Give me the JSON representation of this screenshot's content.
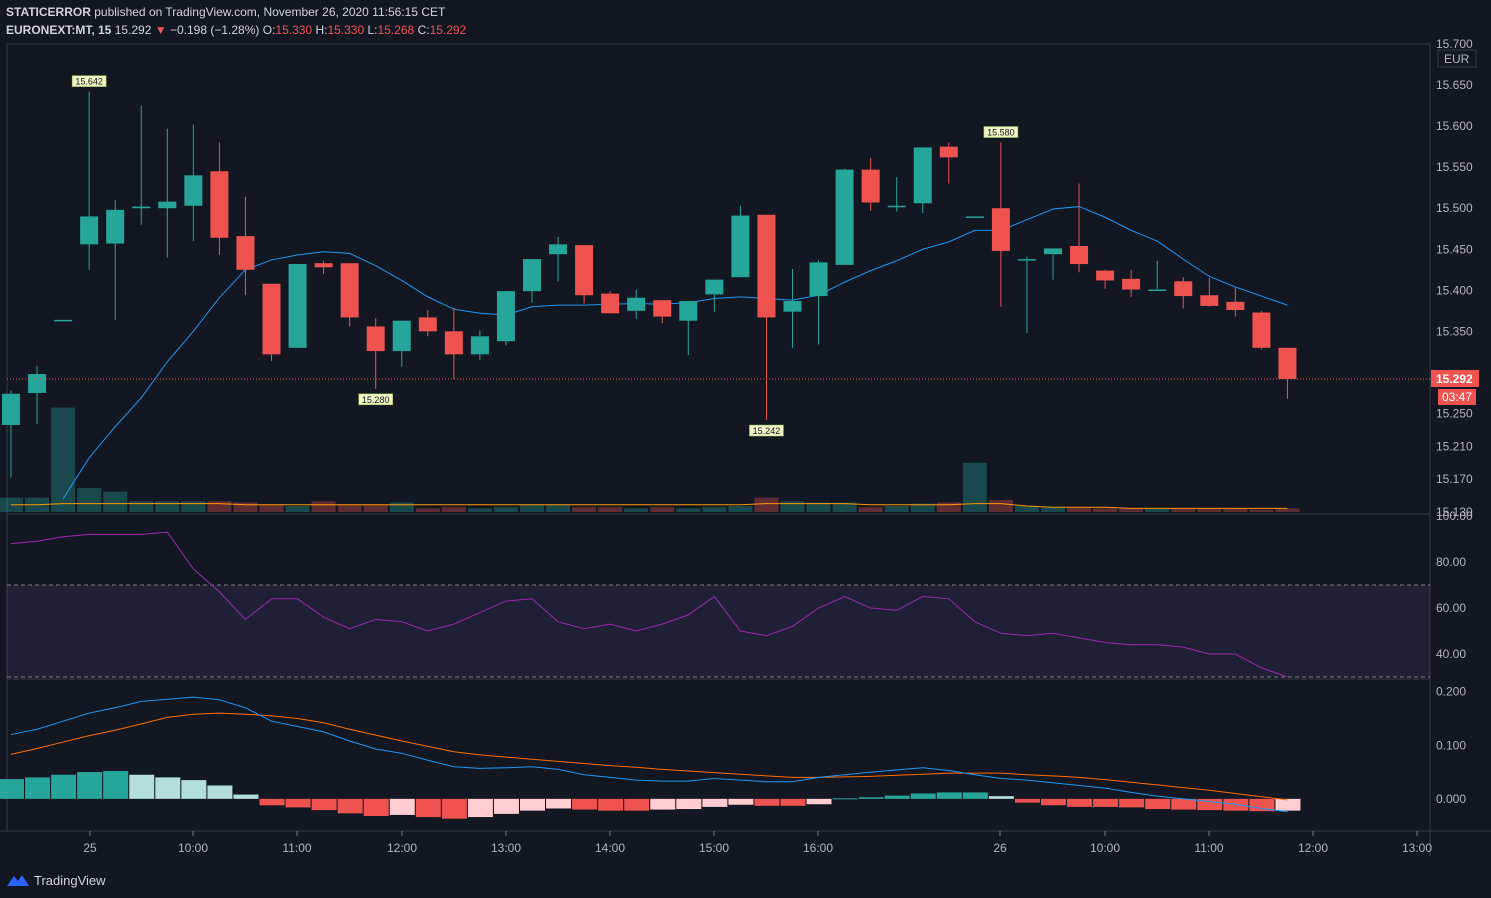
{
  "header": {
    "publisher": "STATICERROR",
    "published_text": "published on TradingView.com, November 26, 2020 11:56:15 CET",
    "symbol": "EURONEXT:MT, 15",
    "last": "15.292",
    "change_arrow": "▼",
    "change": "−0.198 (−1.28%)",
    "o_label": "O:",
    "o": "15.330",
    "h_label": "H:",
    "h": "15.330",
    "l_label": "L:",
    "l": "15.268",
    "c_label": "C:",
    "c": "15.292"
  },
  "footer": {
    "brand": "TradingView",
    "logo_icon": "tradingview-logo-icon"
  },
  "colors": {
    "background": "#131722",
    "up": "#26a69a",
    "down": "#ef5350",
    "ma": "#2196f3",
    "volume_ma": "#ff9800",
    "rsi": "#9c27b0",
    "macd": "#2196f3",
    "signal": "#ff6d00"
  },
  "chart_data": {
    "type": "candlestick",
    "currency": "EUR",
    "price_ticks": [
      "15.700",
      "15.650",
      "15.600",
      "15.550",
      "15.500",
      "15.450",
      "15.400",
      "15.350",
      "15.290",
      "15.250",
      "15.210",
      "15.170",
      "15.130"
    ],
    "price_ylim": [
      15.13,
      15.7
    ],
    "last_price": "15.292",
    "countdown": "03:47",
    "x_labels": [
      "25",
      "10:00",
      "11:00",
      "12:00",
      "13:00",
      "14:00",
      "15:00",
      "16:00",
      "26",
      "10:00",
      "11:00",
      "12:00",
      "13:00"
    ],
    "annotations": [
      {
        "label": "15.642",
        "bar": 3,
        "value": 15.642,
        "type": "high"
      },
      {
        "label": "15.280",
        "bar": 14,
        "value": 15.28,
        "type": "low"
      },
      {
        "label": "15.242",
        "bar": 29,
        "value": 15.242,
        "type": "low"
      },
      {
        "label": "15.580",
        "bar": 38,
        "value": 15.58,
        "type": "high"
      }
    ],
    "candles": [
      [
        15.236,
        15.274,
        15.172,
        15.278
      ],
      [
        15.275,
        15.298,
        15.237,
        15.308
      ],
      [
        15.364,
        15.364,
        15.364,
        15.364
      ],
      [
        15.456,
        15.49,
        15.425,
        15.642
      ],
      [
        15.457,
        15.498,
        15.364,
        15.51
      ],
      [
        15.5,
        15.502,
        15.48,
        15.625
      ],
      [
        15.5,
        15.508,
        15.44,
        15.597
      ],
      [
        15.503,
        15.54,
        15.46,
        15.602
      ],
      [
        15.545,
        15.464,
        15.443,
        15.58
      ],
      [
        15.466,
        15.425,
        15.394,
        15.514
      ],
      [
        15.408,
        15.322,
        15.314,
        15.408
      ],
      [
        15.33,
        15.432,
        15.33,
        15.432
      ],
      [
        15.433,
        15.428,
        15.42,
        15.436
      ],
      [
        15.433,
        15.367,
        15.356,
        15.433
      ],
      [
        15.356,
        15.326,
        15.28,
        15.366
      ],
      [
        15.326,
        15.363,
        15.307,
        15.363
      ],
      [
        15.367,
        15.35,
        15.344,
        15.376
      ],
      [
        15.35,
        15.322,
        15.292,
        15.379
      ],
      [
        15.322,
        15.344,
        15.315,
        15.351
      ],
      [
        15.338,
        15.399,
        15.333,
        15.399
      ],
      [
        15.399,
        15.438,
        15.385,
        15.438
      ],
      [
        15.444,
        15.456,
        15.411,
        15.465
      ],
      [
        15.455,
        15.394,
        15.384,
        15.455
      ],
      [
        15.396,
        15.372,
        15.372,
        15.399
      ],
      [
        15.375,
        15.391,
        15.365,
        15.401
      ],
      [
        15.388,
        15.368,
        15.36,
        15.388
      ],
      [
        15.363,
        15.387,
        15.321,
        15.387
      ],
      [
        15.395,
        15.413,
        15.374,
        15.413
      ],
      [
        15.416,
        15.491,
        15.416,
        15.503
      ],
      [
        15.492,
        15.367,
        15.242,
        15.492
      ],
      [
        15.374,
        15.387,
        15.33,
        15.426
      ],
      [
        15.393,
        15.434,
        15.334,
        15.437
      ],
      [
        15.431,
        15.547,
        15.431,
        15.548
      ],
      [
        15.547,
        15.507,
        15.497,
        15.561
      ],
      [
        15.503,
        15.503,
        15.496,
        15.538
      ],
      [
        15.506,
        15.574,
        15.494,
        15.574
      ],
      [
        15.575,
        15.562,
        15.53,
        15.58
      ],
      [
        15.49,
        15.49,
        15.49,
        15.49
      ],
      [
        15.5,
        15.448,
        15.38,
        15.58
      ],
      [
        15.438,
        15.438,
        15.348,
        15.441
      ],
      [
        15.444,
        15.451,
        15.413,
        15.451
      ],
      [
        15.454,
        15.432,
        15.422,
        15.53
      ],
      [
        15.424,
        15.412,
        15.402,
        15.425
      ],
      [
        15.414,
        15.401,
        15.392,
        15.425
      ],
      [
        15.401,
        15.401,
        15.402,
        15.436
      ],
      [
        15.411,
        15.393,
        15.378,
        15.416
      ],
      [
        15.394,
        15.381,
        15.38,
        15.415
      ],
      [
        15.386,
        15.376,
        15.368,
        15.403
      ],
      [
        15.373,
        15.33,
        15.328,
        15.375
      ],
      [
        15.33,
        15.292,
        15.268,
        15.33
      ]
    ],
    "ma": [
      null,
      null,
      15.146,
      15.196,
      15.234,
      15.269,
      15.313,
      15.35,
      15.391,
      15.425,
      15.437,
      15.443,
      15.447,
      15.445,
      15.43,
      15.412,
      15.392,
      15.377,
      15.372,
      15.37,
      15.38,
      15.382,
      15.382,
      15.383,
      15.384,
      15.383,
      15.385,
      15.39,
      15.392,
      15.39,
      15.388,
      15.394,
      15.41,
      15.424,
      15.436,
      15.45,
      15.459,
      15.473,
      15.473,
      15.486,
      15.499,
      15.502,
      15.489,
      15.473,
      15.46,
      15.438,
      15.417,
      15.404,
      15.393,
      15.382
    ],
    "volume_ylim": [
      0,
      100
    ],
    "volume": [
      12,
      12,
      87,
      20,
      17,
      9,
      9,
      9,
      9,
      8,
      6,
      5,
      9,
      6,
      6,
      8,
      3,
      4,
      3,
      4,
      6,
      6,
      4,
      4,
      3,
      4,
      3,
      4,
      5,
      12,
      9,
      8,
      8,
      4,
      5,
      7,
      8,
      41,
      10,
      5,
      4,
      4,
      3,
      3,
      3,
      3,
      3,
      3,
      2,
      3
    ],
    "volume_ma": [
      6,
      6,
      7,
      7,
      7,
      7,
      7,
      7,
      7,
      6,
      6,
      6,
      6,
      6,
      6,
      6,
      6,
      6,
      6,
      6,
      6,
      6,
      6,
      6,
      6,
      6,
      6,
      6,
      6,
      7,
      7,
      7,
      7,
      6,
      6,
      6,
      6,
      7,
      7,
      5,
      4,
      4,
      4,
      3,
      3,
      3,
      3,
      3,
      3,
      3
    ],
    "rsi_ticks": [
      "100.00",
      "80.00",
      "60.00",
      "40.00"
    ],
    "rsi_ylim": [
      30,
      100
    ],
    "rsi_bands": [
      70,
      30
    ],
    "rsi": [
      88,
      89,
      91,
      92,
      92,
      92,
      93,
      77,
      67,
      55,
      64,
      64,
      56,
      51,
      55,
      54,
      50,
      53,
      58,
      63,
      64,
      54,
      51,
      53,
      50,
      53,
      57,
      65,
      50,
      48,
      52,
      60,
      65,
      60,
      59,
      65,
      64,
      54,
      49,
      48,
      49,
      47,
      45,
      44,
      44,
      43,
      40,
      40,
      34,
      30
    ],
    "macd_ticks": [
      "0.200",
      "0.100",
      "0.000"
    ],
    "macd_ylim": [
      -0.06,
      0.22
    ],
    "macd": [
      0.12,
      0.13,
      0.145,
      0.16,
      0.17,
      0.182,
      0.186,
      0.19,
      0.185,
      0.17,
      0.145,
      0.135,
      0.125,
      0.108,
      0.093,
      0.085,
      0.072,
      0.06,
      0.057,
      0.058,
      0.06,
      0.055,
      0.045,
      0.04,
      0.035,
      0.033,
      0.033,
      0.038,
      0.035,
      0.032,
      0.032,
      0.04,
      0.045,
      0.05,
      0.054,
      0.058,
      0.053,
      0.045,
      0.038,
      0.035,
      0.03,
      0.025,
      0.02,
      0.012,
      0.005,
      0.0,
      -0.005,
      -0.01,
      -0.018,
      -0.024
    ],
    "signal": [
      0.083,
      0.094,
      0.106,
      0.118,
      0.128,
      0.14,
      0.152,
      0.158,
      0.16,
      0.158,
      0.155,
      0.15,
      0.142,
      0.13,
      0.119,
      0.108,
      0.098,
      0.088,
      0.082,
      0.078,
      0.074,
      0.07,
      0.066,
      0.062,
      0.059,
      0.055,
      0.052,
      0.049,
      0.046,
      0.043,
      0.04,
      0.04,
      0.041,
      0.042,
      0.044,
      0.046,
      0.048,
      0.048,
      0.048,
      0.045,
      0.043,
      0.04,
      0.036,
      0.031,
      0.026,
      0.021,
      0.016,
      0.01,
      0.004,
      -0.002
    ],
    "histogram": [
      0.037,
      0.04,
      0.045,
      0.05,
      0.052,
      0.045,
      0.04,
      0.035,
      0.025,
      0.008,
      -0.012,
      -0.016,
      -0.021,
      -0.027,
      -0.032,
      -0.03,
      -0.034,
      -0.037,
      -0.034,
      -0.028,
      -0.022,
      -0.018,
      -0.02,
      -0.022,
      -0.022,
      -0.02,
      -0.019,
      -0.015,
      -0.011,
      -0.013,
      -0.013,
      -0.01,
      0.001,
      0.003,
      0.006,
      0.01,
      0.012,
      0.012,
      0.005,
      -0.007,
      -0.012,
      -0.015,
      -0.015,
      -0.016,
      -0.019,
      -0.02,
      -0.021,
      -0.022,
      -0.023,
      -0.022
    ]
  }
}
